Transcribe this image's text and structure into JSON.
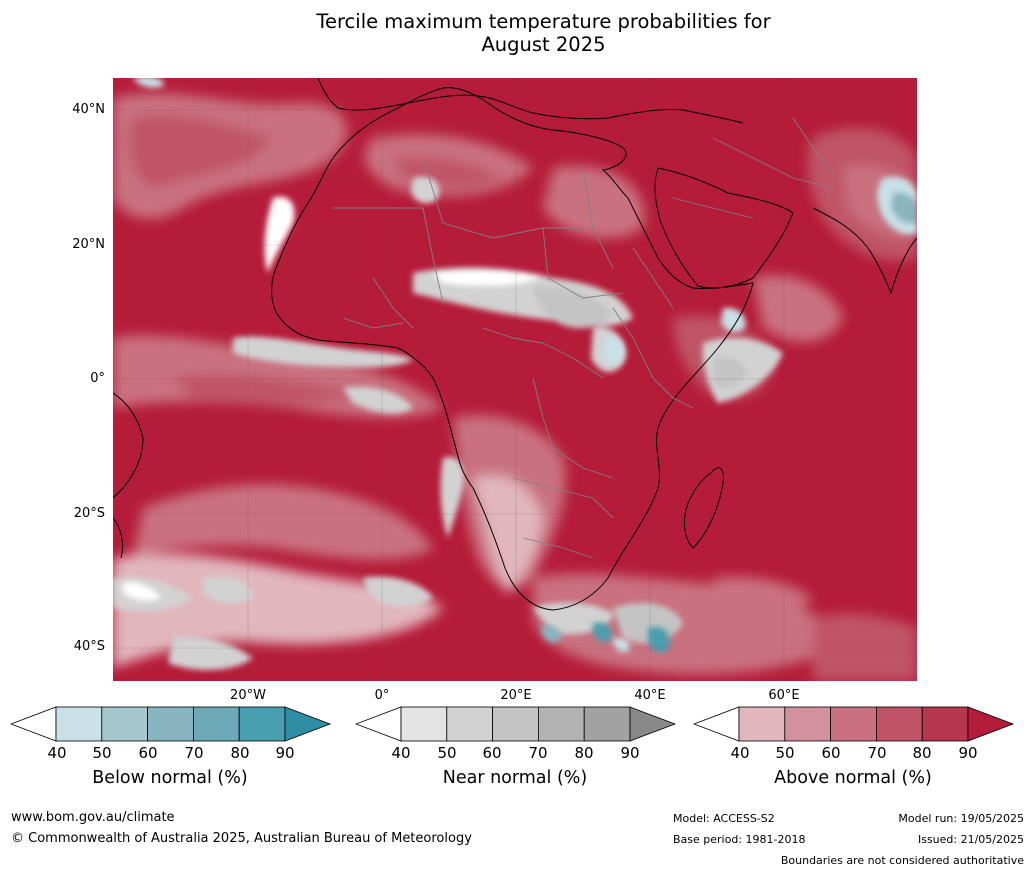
{
  "title": {
    "line1": "Tercile maximum temperature probabilities for",
    "line2": "August 2025"
  },
  "map": {
    "lat_labels": [
      "40°N",
      "20°N",
      "0°",
      "20°S",
      "40°S"
    ],
    "lon_labels": [
      "20°W",
      "0°",
      "20°E",
      "40°E",
      "60°E"
    ],
    "colors": {
      "ocean_base": "#b51c39",
      "land_outline": "#000000",
      "border": "#808080",
      "grid": "#444444"
    }
  },
  "colorbars": [
    {
      "name": "below",
      "title": "Below normal (%)",
      "ticks": [
        "40",
        "50",
        "60",
        "70",
        "80",
        "90"
      ],
      "colors": [
        "#ffffff",
        "#c8e0e6",
        "#a7c7ce",
        "#88b5c0",
        "#6caab7",
        "#489faf",
        "#2e8ea3"
      ]
    },
    {
      "name": "near",
      "title": "Near normal (%)",
      "ticks": [
        "40",
        "50",
        "60",
        "70",
        "80",
        "90"
      ],
      "colors": [
        "#ffffff",
        "#e3e3e3",
        "#d2d2d2",
        "#c4c4c4",
        "#b3b3b3",
        "#a2a2a2",
        "#888888"
      ]
    },
    {
      "name": "above",
      "title": "Above normal (%)",
      "ticks": [
        "40",
        "50",
        "60",
        "70",
        "80",
        "90"
      ],
      "colors": [
        "#ffffff",
        "#e1b6bd",
        "#d2929d",
        "#c9717f",
        "#bf5466",
        "#b5364d",
        "#b51c39"
      ]
    }
  ],
  "footer": {
    "website": "www.bom.gov.au/climate",
    "copyright": "© Commonwealth of Australia 2025, Australian Bureau of Meteorology",
    "model": "Model: ACCESS-S2",
    "base_period": "Base period: 1981-2018",
    "model_run": "Model run: 19/05/2025",
    "issued": "Issued: 21/05/2025",
    "boundaries_note": "Boundaries are not considered authoritative"
  }
}
